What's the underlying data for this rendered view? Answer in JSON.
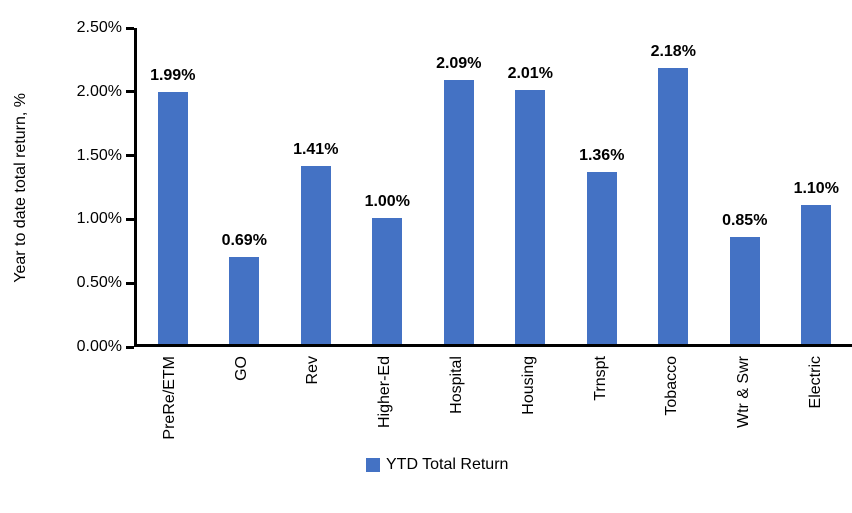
{
  "chart_data": {
    "type": "bar",
    "title": "",
    "ylabel": "Year to date total return, %",
    "xlabel": "",
    "categories": [
      "PreRe/ETM",
      "GO",
      "Rev",
      "Higher-Ed",
      "Hospital",
      "Housing",
      "Trnspt",
      "Tobacco",
      "Wtr & Swr",
      "Electric"
    ],
    "values": [
      1.99,
      0.69,
      1.41,
      1.0,
      2.09,
      2.01,
      1.36,
      2.18,
      0.85,
      1.1
    ],
    "value_labels": [
      "1.99%",
      "0.69%",
      "1.41%",
      "1.00%",
      "2.09%",
      "2.01%",
      "1.36%",
      "2.18%",
      "0.85%",
      "1.10%"
    ],
    "ylim": [
      0,
      2.5
    ],
    "ytick_labels": [
      "2.50%",
      "2.00%",
      "1.50%",
      "1.00%",
      "0.50%",
      "0.00%"
    ],
    "ytick_values": [
      2.5,
      2.0,
      1.5,
      1.0,
      0.5,
      0.0
    ],
    "grid": false,
    "legend_position": "bottom",
    "legend": [
      {
        "name": "YTD Total Return",
        "color": "#4472C4"
      }
    ],
    "bar_color": "#4472C4",
    "axis_color": "#000000",
    "text_color": "#000000"
  }
}
